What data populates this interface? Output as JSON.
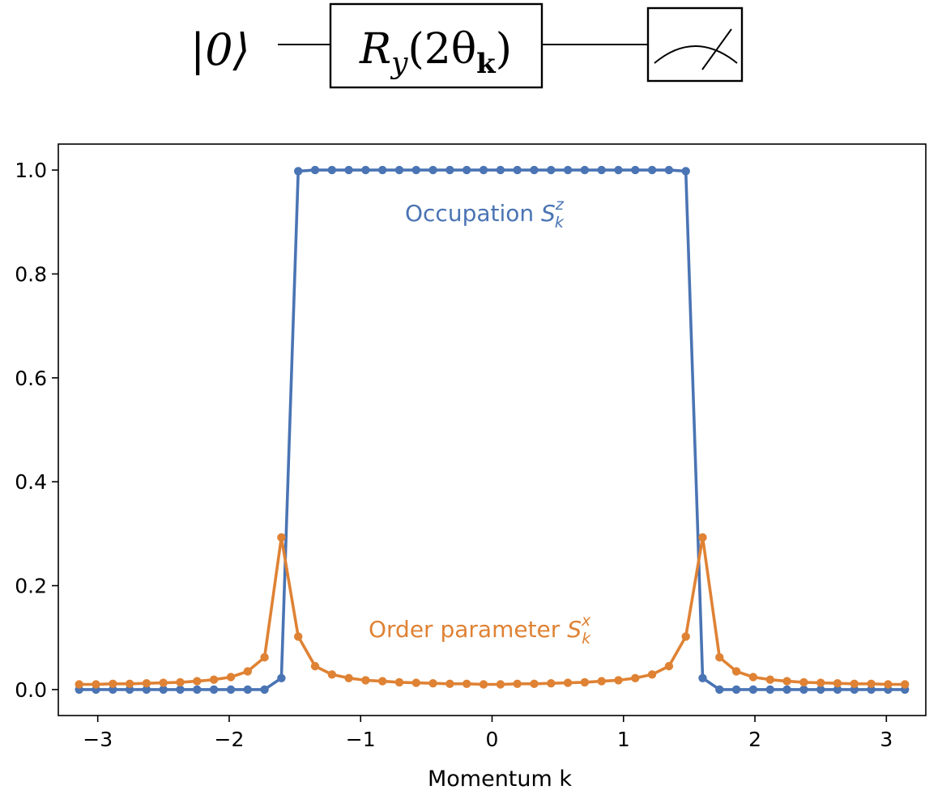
{
  "circuit": {
    "ket_label": "|0⟩",
    "gate": {
      "symbol": "R",
      "subscript": "y",
      "argument_open": "(2θ",
      "argument_sub": "k",
      "argument_close": ")"
    },
    "measurement": "meter-icon"
  },
  "colors": {
    "occupation": "#4a74b4",
    "order": "#df8234",
    "axes": "#000000"
  },
  "chart_data": {
    "type": "line",
    "title": "",
    "xlabel": "Momentum k",
    "ylabel": "",
    "xlim": [
      -3.3,
      3.3
    ],
    "ylim": [
      -0.05,
      1.05
    ],
    "xticks": [
      -3,
      -2,
      -1,
      0,
      1,
      2,
      3
    ],
    "xtick_labels": [
      "−3",
      "−2",
      "−1",
      "0",
      "1",
      "2",
      "3"
    ],
    "yticks": [
      0.0,
      0.2,
      0.4,
      0.6,
      0.8,
      1.0
    ],
    "ytick_labels": [
      "0.0",
      "0.2",
      "0.4",
      "0.6",
      "0.8",
      "1.0"
    ],
    "grid": false,
    "x": [
      -3.1416,
      -3.0134,
      -2.8852,
      -2.757,
      -2.6287,
      -2.5005,
      -2.3723,
      -2.2441,
      -2.1159,
      -1.9877,
      -1.8594,
      -1.7312,
      -1.603,
      -1.4748,
      -1.3466,
      -1.2184,
      -1.0901,
      -0.9619,
      -0.8337,
      -0.7055,
      -0.5773,
      -0.4491,
      -0.3208,
      -0.1926,
      -0.0644,
      0.0638,
      0.192,
      0.3202,
      0.4484,
      0.5767,
      0.7049,
      0.8331,
      0.9613,
      1.0895,
      1.2177,
      1.346,
      1.4742,
      1.6024,
      1.7306,
      1.8588,
      1.987,
      2.1153,
      2.2435,
      2.3717,
      2.4999,
      2.6281,
      2.7563,
      2.8846,
      3.0128,
      3.141
    ],
    "series": [
      {
        "name": "Occupation S_k^z",
        "label_main": "Occupation ",
        "label_symbol": "S",
        "label_sup": "z",
        "label_sub": "k",
        "color": "#4a74b4",
        "values": [
          0.0,
          0.0,
          0.0,
          0.0,
          0.0,
          0.0,
          0.0,
          0.0,
          0.0,
          0.0,
          0.0,
          0.0,
          0.022,
          0.998,
          1.0,
          1.0,
          1.0,
          1.0,
          1.0,
          1.0,
          1.0,
          1.0,
          1.0,
          1.0,
          1.0,
          1.0,
          1.0,
          1.0,
          1.0,
          1.0,
          1.0,
          1.0,
          1.0,
          1.0,
          1.0,
          1.0,
          0.998,
          0.022,
          0.0,
          0.0,
          0.0,
          0.0,
          0.0,
          0.0,
          0.0,
          0.0,
          0.0,
          0.0,
          0.0,
          0.0
        ]
      },
      {
        "name": "Order parameter S_k^x",
        "label_main": "Order parameter ",
        "label_symbol": "S",
        "label_sup": "x",
        "label_sub": "k",
        "color": "#df8234",
        "values": [
          0.01,
          0.01,
          0.011,
          0.011,
          0.012,
          0.013,
          0.014,
          0.016,
          0.019,
          0.024,
          0.035,
          0.062,
          0.293,
          0.102,
          0.045,
          0.029,
          0.022,
          0.018,
          0.016,
          0.014,
          0.013,
          0.012,
          0.011,
          0.011,
          0.01,
          0.01,
          0.011,
          0.011,
          0.012,
          0.013,
          0.014,
          0.016,
          0.018,
          0.022,
          0.029,
          0.045,
          0.102,
          0.293,
          0.062,
          0.035,
          0.024,
          0.019,
          0.016,
          0.014,
          0.013,
          0.012,
          0.011,
          0.011,
          0.01,
          0.01
        ]
      }
    ]
  }
}
